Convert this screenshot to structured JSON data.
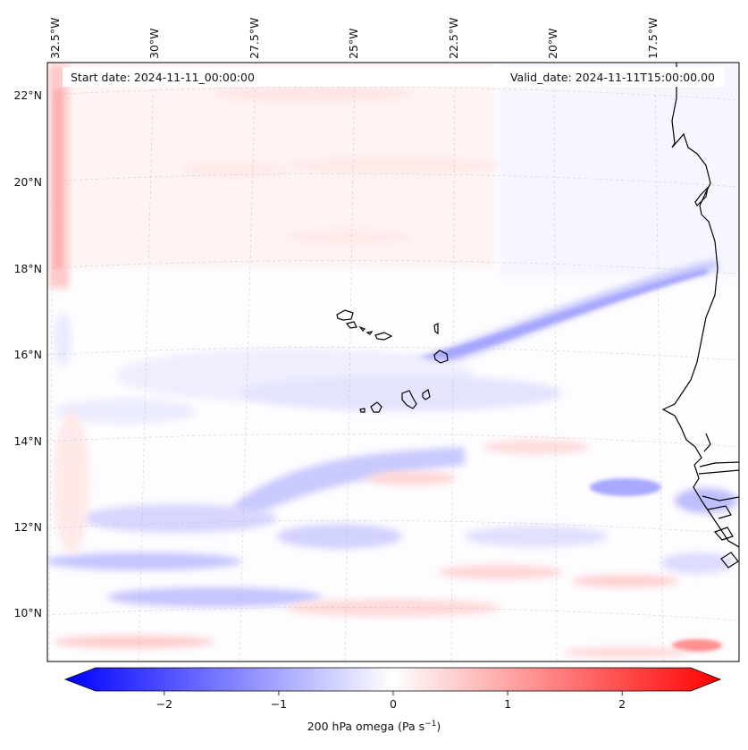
{
  "header": {
    "start_date": "Start date: 2024-11-11_00:00:00",
    "valid_date": "Valid_date: 2024-11-11T15:00:00.00"
  },
  "map": {
    "lon_labels": [
      "32.5°W",
      "30°W",
      "27.5°W",
      "25°W",
      "22.5°W",
      "20°W",
      "17.5°W"
    ],
    "lat_labels": [
      "22°N",
      "20°N",
      "18°N",
      "16°N",
      "14°N",
      "12°N",
      "10°N"
    ],
    "gridlines": "dashed",
    "projection": "lambert conformal",
    "islands": "Cape Verde",
    "coastline": "West Africa"
  },
  "colorbar": {
    "colormap": "bwr",
    "min": -2.6,
    "max": 2.6,
    "ticks": [
      -2,
      -1,
      0,
      1,
      2
    ],
    "tick_labels": [
      "−2",
      "−1",
      "0",
      "1",
      "2"
    ],
    "extend": "both",
    "label_prefix": "200 hPa omega (Pa s",
    "label_sup": "−1",
    "label_suffix": ")"
  },
  "colors": {
    "negative": "#0000ff",
    "positive": "#ff0000",
    "coastline": "#000000"
  }
}
